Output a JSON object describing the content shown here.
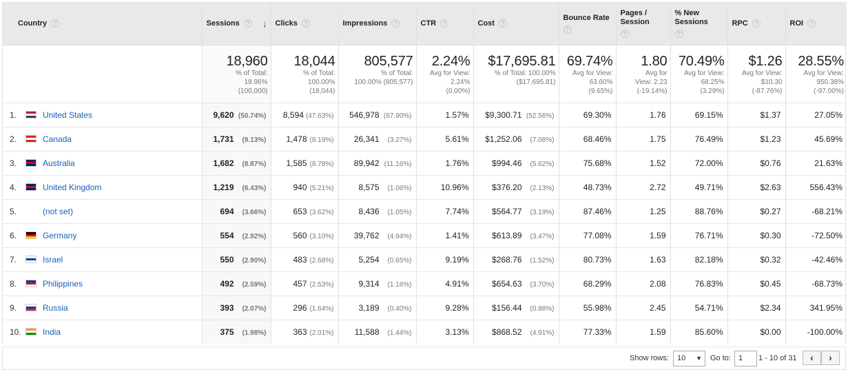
{
  "headers": {
    "country": "Country",
    "sessions": "Sessions",
    "clicks": "Clicks",
    "impressions": "Impressions",
    "ctr": "CTR",
    "cost": "Cost",
    "bounce_rate": "Bounce Rate",
    "pages_session": "Pages / Session",
    "new_sessions": "% New Sessions",
    "rpc": "RPC",
    "roi": "ROI"
  },
  "icons": {
    "help": "help-icon",
    "sort": "sort-descending-arrow-icon"
  },
  "help_glyph": "?",
  "sort_glyph": "↓",
  "totals": {
    "sessions": {
      "value": "18,960",
      "l1": "% of Total:",
      "l2": "18.96%",
      "l3": "(100,000)"
    },
    "clicks": {
      "value": "18,044",
      "l1": "% of Total:",
      "l2": "100.00%",
      "l3": "(18,044)"
    },
    "impressions": {
      "value": "805,577",
      "l1": "% of Total:",
      "l2": "100.00% (805,577)",
      "l3": ""
    },
    "ctr": {
      "value": "2.24%",
      "l1": "Avg for View:",
      "l2": "2.24%",
      "l3": "(0.00%)"
    },
    "cost": {
      "value": "$17,695.81",
      "l1": "% of Total: 100.00%",
      "l2": "($17,695.81)",
      "l3": ""
    },
    "bounce_rate": {
      "value": "69.74%",
      "l1": "Avg for View:",
      "l2": "63.60%",
      "l3": "(9.65%)"
    },
    "pages_session": {
      "value": "1.80",
      "l1": "Avg for",
      "l2": "View: 2.23",
      "l3": "(-19.14%)"
    },
    "new_sessions": {
      "value": "70.49%",
      "l1": "Avg for View:",
      "l2": "68.25%",
      "l3": "(3.29%)"
    },
    "rpc": {
      "value": "$1.26",
      "l1": "Avg for View:",
      "l2": "$10.30",
      "l3": "(-87.76%)"
    },
    "roi": {
      "value": "28.55%",
      "l1": "Avg for View:",
      "l2": "950.38%",
      "l3": "(-97.00%)"
    }
  },
  "rows": [
    {
      "idx": "1.",
      "country": "United States",
      "flag": [
        "#b22234",
        "#ffffff",
        "#3c3b6e"
      ],
      "sessions": "9,620",
      "sessions_pct": "(50.74%)",
      "clicks": "8,594",
      "clicks_pct": "(47.63%)",
      "impressions": "546,978",
      "impressions_pct": "(67.90%)",
      "ctr": "1.57%",
      "cost": "$9,300.71",
      "cost_pct": "(52.56%)",
      "bounce": "69.30%",
      "pages": "1.76",
      "newsess": "69.15%",
      "rpc": "$1.37",
      "roi": "27.05%"
    },
    {
      "idx": "2.",
      "country": "Canada",
      "flag": [
        "#d52b1e",
        "#ffffff",
        "#d52b1e"
      ],
      "sessions": "1,731",
      "sessions_pct": "(9.13%)",
      "clicks": "1,478",
      "clicks_pct": "(8.19%)",
      "impressions": "26,341",
      "impressions_pct": "(3.27%)",
      "ctr": "5.61%",
      "cost": "$1,252.06",
      "cost_pct": "(7.08%)",
      "bounce": "68.46%",
      "pages": "1.75",
      "newsess": "76.49%",
      "rpc": "$1.23",
      "roi": "45.69%"
    },
    {
      "idx": "3.",
      "country": "Australia",
      "flag": [
        "#012169",
        "#e4002b",
        "#012169"
      ],
      "sessions": "1,682",
      "sessions_pct": "(8.87%)",
      "clicks": "1,585",
      "clicks_pct": "(8.78%)",
      "impressions": "89,942",
      "impressions_pct": "(11.16%)",
      "ctr": "1.76%",
      "cost": "$994.46",
      "cost_pct": "(5.62%)",
      "bounce": "75.68%",
      "pages": "1.52",
      "newsess": "72.00%",
      "rpc": "$0.76",
      "roi": "21.63%"
    },
    {
      "idx": "4.",
      "country": "United Kingdom",
      "flag": [
        "#012169",
        "#c8102e",
        "#012169"
      ],
      "sessions": "1,219",
      "sessions_pct": "(6.43%)",
      "clicks": "940",
      "clicks_pct": "(5.21%)",
      "impressions": "8,575",
      "impressions_pct": "(1.06%)",
      "ctr": "10.96%",
      "cost": "$376.20",
      "cost_pct": "(2.13%)",
      "bounce": "48.73%",
      "pages": "2.72",
      "newsess": "49.71%",
      "rpc": "$2.63",
      "roi": "556.43%"
    },
    {
      "idx": "5.",
      "country": "(not set)",
      "flag": null,
      "sessions": "694",
      "sessions_pct": "(3.66%)",
      "clicks": "653",
      "clicks_pct": "(3.62%)",
      "impressions": "8,436",
      "impressions_pct": "(1.05%)",
      "ctr": "7.74%",
      "cost": "$564.77",
      "cost_pct": "(3.19%)",
      "bounce": "87.46%",
      "pages": "1.25",
      "newsess": "88.76%",
      "rpc": "$0.27",
      "roi": "-68.21%"
    },
    {
      "idx": "6.",
      "country": "Germany",
      "flag": [
        "#000000",
        "#dd0000",
        "#ffce00"
      ],
      "sessions": "554",
      "sessions_pct": "(2.92%)",
      "clicks": "560",
      "clicks_pct": "(3.10%)",
      "impressions": "39,762",
      "impressions_pct": "(4.94%)",
      "ctr": "1.41%",
      "cost": "$613.89",
      "cost_pct": "(3.47%)",
      "bounce": "77.08%",
      "pages": "1.59",
      "newsess": "76.71%",
      "rpc": "$0.30",
      "roi": "-72.50%"
    },
    {
      "idx": "7.",
      "country": "Israel",
      "flag": [
        "#ffffff",
        "#0038b8",
        "#ffffff"
      ],
      "sessions": "550",
      "sessions_pct": "(2.90%)",
      "clicks": "483",
      "clicks_pct": "(2.68%)",
      "impressions": "5,254",
      "impressions_pct": "(0.65%)",
      "ctr": "9.19%",
      "cost": "$268.76",
      "cost_pct": "(1.52%)",
      "bounce": "80.73%",
      "pages": "1.63",
      "newsess": "82.18%",
      "rpc": "$0.32",
      "roi": "-42.46%"
    },
    {
      "idx": "8.",
      "country": "Philippines",
      "flag": [
        "#0038a8",
        "#ce1126",
        "#ffffff"
      ],
      "sessions": "492",
      "sessions_pct": "(2.59%)",
      "clicks": "457",
      "clicks_pct": "(2.53%)",
      "impressions": "9,314",
      "impressions_pct": "(1.16%)",
      "ctr": "4.91%",
      "cost": "$654.63",
      "cost_pct": "(3.70%)",
      "bounce": "68.29%",
      "pages": "2.08",
      "newsess": "76.83%",
      "rpc": "$0.45",
      "roi": "-68.73%"
    },
    {
      "idx": "9.",
      "country": "Russia",
      "flag": [
        "#ffffff",
        "#0039a6",
        "#d52b1e"
      ],
      "sessions": "393",
      "sessions_pct": "(2.07%)",
      "clicks": "296",
      "clicks_pct": "(1.64%)",
      "impressions": "3,189",
      "impressions_pct": "(0.40%)",
      "ctr": "9.28%",
      "cost": "$156.44",
      "cost_pct": "(0.88%)",
      "bounce": "55.98%",
      "pages": "2.45",
      "newsess": "54.71%",
      "rpc": "$2.34",
      "roi": "341.95%"
    },
    {
      "idx": "10.",
      "country": "India",
      "flag": [
        "#ff9933",
        "#ffffff",
        "#138808"
      ],
      "sessions": "375",
      "sessions_pct": "(1.98%)",
      "clicks": "363",
      "clicks_pct": "(2.01%)",
      "impressions": "11,588",
      "impressions_pct": "(1.44%)",
      "ctr": "3.13%",
      "cost": "$868.52",
      "cost_pct": "(4.91%)",
      "bounce": "77.33%",
      "pages": "1.59",
      "newsess": "85.60%",
      "rpc": "$0.00",
      "roi": "-100.00%"
    }
  ],
  "footer": {
    "show_rows_label": "Show rows:",
    "show_rows_value": "10",
    "goto_label": "Go to:",
    "goto_value": "1",
    "range": "1 - 10 of 31",
    "prev": "‹",
    "next": "›"
  }
}
